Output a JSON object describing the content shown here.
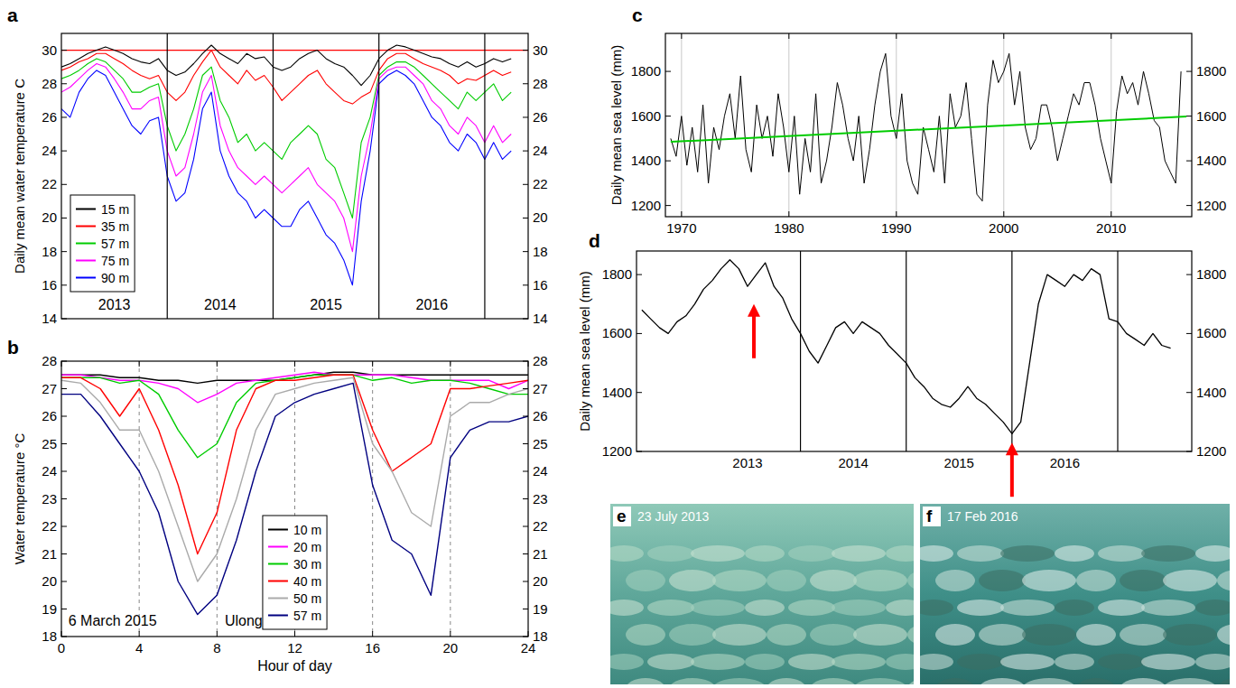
{
  "chart_data": [
    {
      "type": "line",
      "panel": "a",
      "y_label": "Daily mean water temperature C",
      "x": [
        2013,
        2013.083,
        2013.167,
        2013.25,
        2013.333,
        2013.417,
        2013.5,
        2013.583,
        2013.667,
        2013.75,
        2013.833,
        2013.917,
        2014,
        2014.083,
        2014.167,
        2014.25,
        2014.333,
        2014.417,
        2014.5,
        2014.583,
        2014.667,
        2014.75,
        2014.833,
        2014.917,
        2015,
        2015.083,
        2015.167,
        2015.25,
        2015.333,
        2015.417,
        2015.5,
        2015.583,
        2015.667,
        2015.75,
        2015.833,
        2015.917,
        2016,
        2016.083,
        2016.167,
        2016.25,
        2016.333,
        2016.417,
        2016.5,
        2016.583,
        2016.667,
        2016.75,
        2016.833,
        2016.917,
        2017,
        2017.083,
        2017.167,
        2017.25
      ],
      "xlim": [
        2013,
        2017.41
      ],
      "xticks": [
        {
          "value": 2013.5,
          "label": "2013"
        },
        {
          "value": 2014.5,
          "label": "2014"
        },
        {
          "value": 2015.5,
          "label": "2015"
        },
        {
          "value": 2016.5,
          "label": "2016"
        }
      ],
      "year_boundaries": [
        2014,
        2015,
        2016,
        2017
      ],
      "ylim": [
        14,
        31
      ],
      "yticks": [
        14,
        16,
        18,
        20,
        22,
        24,
        26,
        28,
        30
      ],
      "threshold": 30,
      "legend": "lower-left",
      "series": [
        {
          "name": "15 m",
          "color": "#000000",
          "values": [
            29.0,
            29.2,
            29.5,
            29.8,
            30.0,
            30.2,
            30.0,
            29.8,
            29.5,
            29.3,
            29.2,
            29.5,
            28.8,
            28.5,
            28.7,
            29.2,
            29.8,
            30.3,
            29.8,
            29.5,
            29.2,
            29.8,
            29.5,
            29.6,
            29.0,
            28.8,
            29.0,
            29.5,
            29.8,
            30.0,
            29.5,
            29.2,
            29.0,
            28.5,
            27.9,
            28.5,
            29.5,
            30.0,
            30.3,
            30.2,
            30.0,
            29.8,
            29.6,
            29.5,
            29.2,
            29.0,
            29.3,
            29.0,
            29.2,
            29.5,
            29.3,
            29.5
          ]
        },
        {
          "name": "35 m",
          "color": "#ff0000",
          "values": [
            28.8,
            29.0,
            29.3,
            29.5,
            29.8,
            29.8,
            29.5,
            29.2,
            28.8,
            28.5,
            28.3,
            28.5,
            27.5,
            27.0,
            27.5,
            28.5,
            29.3,
            30.0,
            29.0,
            28.5,
            28.0,
            28.8,
            28.2,
            28.5,
            27.8,
            27.0,
            27.5,
            28.0,
            28.5,
            28.8,
            28.0,
            27.5,
            27.0,
            26.8,
            27.2,
            27.5,
            28.8,
            29.5,
            29.8,
            29.8,
            29.5,
            29.2,
            29.0,
            28.8,
            28.5,
            28.0,
            28.3,
            28.2,
            28.5,
            28.8,
            28.5,
            28.7
          ]
        },
        {
          "name": "57 m",
          "color": "#00cc00",
          "values": [
            28.3,
            28.5,
            28.8,
            29.2,
            29.5,
            29.3,
            28.8,
            28.3,
            27.5,
            27.5,
            27.8,
            28.0,
            25.5,
            24.0,
            25.0,
            26.5,
            28.5,
            29.0,
            27.0,
            26.0,
            24.5,
            25.0,
            24.0,
            24.5,
            24.0,
            23.5,
            24.5,
            25.0,
            25.5,
            25.0,
            23.5,
            23.0,
            21.5,
            20.0,
            24.5,
            26.0,
            28.5,
            29.0,
            29.3,
            29.3,
            29.0,
            28.5,
            28.0,
            27.5,
            27.0,
            26.5,
            27.5,
            27.0,
            27.5,
            28.0,
            27.0,
            27.5
          ]
        },
        {
          "name": "75 m",
          "color": "#ff00ff",
          "values": [
            27.5,
            27.8,
            28.3,
            28.8,
            29.2,
            29.0,
            28.3,
            27.5,
            26.5,
            26.5,
            27.0,
            27.2,
            24.0,
            22.5,
            23.0,
            25.0,
            27.5,
            28.5,
            25.5,
            24.0,
            23.0,
            22.5,
            22.0,
            22.5,
            22.0,
            21.5,
            22.0,
            22.5,
            23.0,
            22.0,
            21.5,
            21.0,
            20.0,
            18.0,
            22.5,
            25.0,
            28.3,
            28.8,
            29.0,
            29.0,
            28.5,
            28.0,
            27.0,
            26.5,
            25.5,
            25.0,
            26.0,
            25.5,
            24.5,
            25.5,
            24.5,
            25.0
          ]
        },
        {
          "name": "90 m",
          "color": "#0000ff",
          "values": [
            26.5,
            26.0,
            27.5,
            28.3,
            28.8,
            28.5,
            27.5,
            26.5,
            25.5,
            25.0,
            25.8,
            26.0,
            22.5,
            21.0,
            21.5,
            23.5,
            26.5,
            27.5,
            24.0,
            22.5,
            21.5,
            21.0,
            20.0,
            20.5,
            20.0,
            19.5,
            19.5,
            20.5,
            21.0,
            20.0,
            19.0,
            18.5,
            17.5,
            16.0,
            21.0,
            24.0,
            28.0,
            28.5,
            28.8,
            28.5,
            28.0,
            27.0,
            26.0,
            25.5,
            24.5,
            24.0,
            25.0,
            24.5,
            23.5,
            24.5,
            23.5,
            24.0
          ]
        }
      ]
    },
    {
      "type": "line",
      "panel": "b",
      "x_label": "Hour of day",
      "y_label": "Water temperature °C",
      "annotations": [
        "6 March 2015",
        "Ulong Rock"
      ],
      "x": [
        0,
        1,
        2,
        3,
        4,
        5,
        6,
        7,
        8,
        9,
        10,
        11,
        12,
        13,
        14,
        15,
        16,
        17,
        18,
        19,
        20,
        21,
        22,
        23,
        24
      ],
      "xlim": [
        0,
        24
      ],
      "xticks": [
        0,
        4,
        8,
        12,
        16,
        20,
        24
      ],
      "ylim": [
        18,
        28
      ],
      "yticks": [
        18,
        19,
        20,
        21,
        22,
        23,
        24,
        25,
        26,
        27,
        28
      ],
      "grid": true,
      "legend": "lower-center",
      "series": [
        {
          "name": "10 m",
          "color": "#000000",
          "values": [
            27.5,
            27.5,
            27.5,
            27.4,
            27.4,
            27.3,
            27.3,
            27.2,
            27.3,
            27.3,
            27.3,
            27.3,
            27.4,
            27.5,
            27.6,
            27.6,
            27.5,
            27.5,
            27.5,
            27.5,
            27.5,
            27.5,
            27.5,
            27.5,
            27.5
          ]
        },
        {
          "name": "20 m",
          "color": "#ff00ff",
          "values": [
            27.5,
            27.5,
            27.4,
            27.3,
            27.3,
            27.2,
            27.0,
            26.5,
            26.8,
            27.2,
            27.3,
            27.4,
            27.5,
            27.6,
            27.5,
            27.5,
            27.5,
            27.5,
            27.4,
            27.3,
            27.3,
            27.3,
            27.3,
            27.0,
            27.3
          ]
        },
        {
          "name": "30 m",
          "color": "#00cc00",
          "values": [
            27.4,
            27.4,
            27.4,
            27.2,
            27.3,
            26.8,
            25.5,
            24.5,
            25.0,
            26.5,
            27.2,
            27.3,
            27.4,
            27.5,
            27.5,
            27.5,
            27.3,
            27.4,
            27.2,
            27.3,
            27.3,
            27.2,
            27.0,
            26.8,
            26.8
          ]
        },
        {
          "name": "40 m",
          "color": "#ff0000",
          "values": [
            27.4,
            27.4,
            27.0,
            26.0,
            27.0,
            25.5,
            23.5,
            21.0,
            22.5,
            25.5,
            27.0,
            27.3,
            27.3,
            27.4,
            27.5,
            27.5,
            25.5,
            24.0,
            24.5,
            25.0,
            27.0,
            27.0,
            27.1,
            27.2,
            27.3
          ]
        },
        {
          "name": "50 m",
          "color": "#aaaaaa",
          "values": [
            27.3,
            27.2,
            26.5,
            25.5,
            25.5,
            24.0,
            22.0,
            20.0,
            21.0,
            23.0,
            25.5,
            26.8,
            27.0,
            27.2,
            27.3,
            27.4,
            25.0,
            24.0,
            22.5,
            22.0,
            26.0,
            26.5,
            26.5,
            26.8,
            27.0
          ]
        },
        {
          "name": "57 m",
          "color": "#000080",
          "values": [
            26.8,
            26.8,
            26.0,
            25.0,
            24.0,
            22.5,
            20.0,
            18.8,
            19.5,
            21.5,
            24.0,
            26.0,
            26.5,
            26.8,
            27.0,
            27.2,
            23.5,
            21.5,
            21.0,
            19.5,
            24.5,
            25.5,
            25.8,
            25.8,
            26.0
          ]
        }
      ]
    },
    {
      "type": "line",
      "panel": "c",
      "y_label": "Daily mean sea level (mm)",
      "x": [
        1969,
        1969.5,
        1970,
        1970.5,
        1971,
        1971.5,
        1972,
        1972.5,
        1973,
        1973.5,
        1974,
        1974.5,
        1975,
        1975.5,
        1976,
        1976.5,
        1977,
        1977.5,
        1978,
        1978.5,
        1979,
        1979.5,
        1980,
        1980.5,
        1981,
        1981.5,
        1982,
        1982.5,
        1983,
        1983.5,
        1984,
        1984.5,
        1985,
        1985.5,
        1986,
        1986.5,
        1987,
        1987.5,
        1988,
        1988.5,
        1989,
        1989.5,
        1990,
        1990.5,
        1991,
        1991.5,
        1992,
        1992.5,
        1993,
        1993.5,
        1994,
        1994.5,
        1995,
        1995.5,
        1996,
        1996.5,
        1997,
        1997.5,
        1998,
        1998.5,
        1999,
        1999.5,
        2000,
        2000.5,
        2001,
        2001.5,
        2002,
        2002.5,
        2003,
        2003.5,
        2004,
        2004.5,
        2005,
        2005.5,
        2006,
        2006.5,
        2007,
        2007.5,
        2008,
        2008.5,
        2009,
        2009.5,
        2010,
        2010.5,
        2011,
        2011.5,
        2012,
        2012.5,
        2013,
        2013.5,
        2014,
        2014.5,
        2015,
        2015.5,
        2016,
        2016.5
      ],
      "xlim": [
        1968.5,
        2017.5
      ],
      "xticks": [
        1970,
        1980,
        1990,
        2000,
        2010
      ],
      "ylim": [
        1150,
        1970
      ],
      "yticks": [
        1200,
        1400,
        1600,
        1800
      ],
      "grid": true,
      "series": [
        {
          "color": "#000000",
          "values": [
            1500,
            1420,
            1600,
            1380,
            1550,
            1350,
            1650,
            1300,
            1550,
            1450,
            1600,
            1700,
            1500,
            1780,
            1450,
            1350,
            1650,
            1500,
            1600,
            1420,
            1700,
            1550,
            1350,
            1600,
            1250,
            1500,
            1350,
            1700,
            1300,
            1400,
            1550,
            1750,
            1650,
            1500,
            1400,
            1600,
            1300,
            1450,
            1650,
            1800,
            1880,
            1600,
            1500,
            1700,
            1400,
            1300,
            1250,
            1550,
            1450,
            1350,
            1600,
            1300,
            1700,
            1550,
            1600,
            1750,
            1500,
            1250,
            1220,
            1650,
            1850,
            1750,
            1800,
            1880,
            1650,
            1800,
            1550,
            1450,
            1500,
            1650,
            1650,
            1550,
            1400,
            1500,
            1600,
            1700,
            1650,
            1750,
            1750,
            1650,
            1500,
            1400,
            1300,
            1620,
            1780,
            1700,
            1750,
            1650,
            1800,
            1700,
            1580,
            1550,
            1400,
            1350,
            1300,
            1800
          ]
        },
        {
          "color": "#00cc00",
          "x": [
            1969,
            2017
          ],
          "values": [
            1485,
            1598
          ]
        }
      ]
    },
    {
      "type": "line",
      "panel": "d",
      "y_label": "Daily mean sea level (mm)",
      "x": [
        2012.5,
        2012.583,
        2012.667,
        2012.75,
        2012.833,
        2012.917,
        2013,
        2013.083,
        2013.167,
        2013.25,
        2013.333,
        2013.417,
        2013.5,
        2013.583,
        2013.667,
        2013.75,
        2013.833,
        2013.917,
        2014,
        2014.083,
        2014.167,
        2014.25,
        2014.333,
        2014.417,
        2014.5,
        2014.583,
        2014.667,
        2014.75,
        2014.833,
        2014.917,
        2015,
        2015.083,
        2015.167,
        2015.25,
        2015.333,
        2015.417,
        2015.5,
        2015.583,
        2015.667,
        2015.75,
        2015.833,
        2015.917,
        2016,
        2016.083,
        2016.167,
        2016.25,
        2016.333,
        2016.417,
        2016.5,
        2016.583,
        2016.667,
        2016.75,
        2016.833,
        2016.917,
        2017,
        2017.083,
        2017.167,
        2017.25,
        2017.333,
        2017.417,
        2017.5
      ],
      "xlim": [
        2012.45,
        2017.7
      ],
      "xticks": [
        {
          "value": 2013.5,
          "label": "2013"
        },
        {
          "value": 2014.5,
          "label": "2014"
        },
        {
          "value": 2015.5,
          "label": "2015"
        },
        {
          "value": 2016.5,
          "label": "2016"
        }
      ],
      "year_boundaries": [
        2014,
        2015,
        2016,
        2017
      ],
      "ylim": [
        1200,
        1880
      ],
      "yticks": [
        1200,
        1400,
        1600,
        1800
      ],
      "arrows": [
        {
          "x": 2013.56,
          "y": 1700
        },
        {
          "x": 2016.0,
          "y": 1230
        }
      ],
      "series": [
        {
          "color": "#000000",
          "values": [
            1680,
            1650,
            1620,
            1600,
            1640,
            1660,
            1700,
            1750,
            1780,
            1820,
            1850,
            1820,
            1760,
            1800,
            1840,
            1760,
            1720,
            1650,
            1600,
            1540,
            1500,
            1560,
            1620,
            1640,
            1600,
            1640,
            1620,
            1600,
            1560,
            1530,
            1500,
            1450,
            1420,
            1380,
            1360,
            1350,
            1380,
            1420,
            1380,
            1360,
            1330,
            1300,
            1260,
            1300,
            1500,
            1700,
            1800,
            1780,
            1760,
            1800,
            1780,
            1820,
            1800,
            1650,
            1640,
            1600,
            1580,
            1560,
            1600,
            1560,
            1550
          ]
        }
      ]
    }
  ],
  "photos": [
    {
      "panel": "e",
      "caption": "23 July 2013"
    },
    {
      "panel": "f",
      "caption": "17 Feb 2016"
    }
  ]
}
